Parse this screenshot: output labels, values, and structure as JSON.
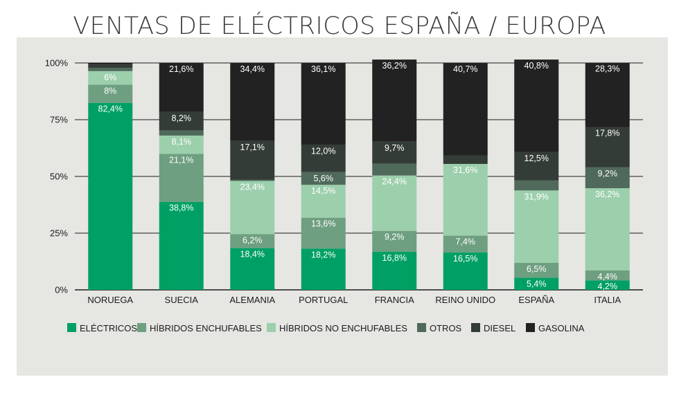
{
  "chart_data": {
    "type": "bar",
    "stacked": true,
    "title": "VENTAS DE ELÉCTRICOS ESPAÑA / EUROPA",
    "xlabel": "",
    "ylabel": "",
    "ylim": [
      0,
      100
    ],
    "yticks": [
      "0%",
      "25%",
      "50%",
      "75%",
      "100%"
    ],
    "legend_position": "bottom",
    "categories": [
      "NORUEGA",
      "SUECIA",
      "ALEMANIA",
      "PORTUGAL",
      "FRANCIA",
      "REINO UNIDO",
      "ESPAÑA",
      "ITALIA"
    ],
    "series": [
      {
        "name": "ELÉCTRICOS",
        "color": "#00a064",
        "values": [
          82.4,
          38.8,
          18.4,
          18.2,
          16.8,
          16.5,
          5.4,
          4.2
        ],
        "labels": [
          "82,4%",
          "38,8%",
          "18,4%",
          "18,2%",
          "16,8%",
          "16,5%",
          "5,4%",
          "4,2%"
        ]
      },
      {
        "name": "HÍBRIDOS ENCHUFABLES",
        "color": "#6e9f80",
        "values": [
          8,
          21.1,
          6.2,
          13.6,
          9.2,
          7.4,
          6.5,
          4.4
        ],
        "labels": [
          "8%",
          "21,1%",
          "6,2%",
          "13,6%",
          "9,2%",
          "7,4%",
          "6,5%",
          "4,4%"
        ]
      },
      {
        "name": "HÍBRIDOS NO ENCHUFABLES",
        "color": "#9ccfac",
        "values": [
          6,
          8.1,
          23.4,
          14.5,
          24.4,
          31.6,
          31.9,
          36.2
        ],
        "labels": [
          "6%",
          "8,1%",
          "23,4%",
          "14,5%",
          "24,4%",
          "31,6%",
          "31,9%",
          "36,2%"
        ]
      },
      {
        "name": "OTROS",
        "color": "#4f6a5b",
        "values": [
          1.4,
          2.2,
          0.5,
          5.6,
          5.2,
          0,
          4.4,
          9.2
        ],
        "labels": [
          "",
          "",
          "",
          "5,6%",
          "",
          "",
          "",
          "9,2%"
        ]
      },
      {
        "name": "DIESEL",
        "color": "#343c37",
        "values": [
          1.5,
          8.2,
          17.1,
          12.0,
          9.7,
          3.8,
          12.5,
          17.8
        ],
        "labels": [
          "",
          "8,2%",
          "17,1%",
          "12,0%",
          "9,7%",
          "",
          "12,5%",
          "17,8%"
        ]
      },
      {
        "name": "GASOLINA",
        "color": "#222222",
        "values": [
          0.7,
          21.6,
          34.4,
          36.1,
          36.2,
          40.7,
          40.8,
          28.3
        ],
        "labels": [
          "",
          "21,6%",
          "34,4%",
          "36,1%",
          "36,2%",
          "40,7%",
          "40,8%",
          "28,3%"
        ]
      }
    ]
  }
}
